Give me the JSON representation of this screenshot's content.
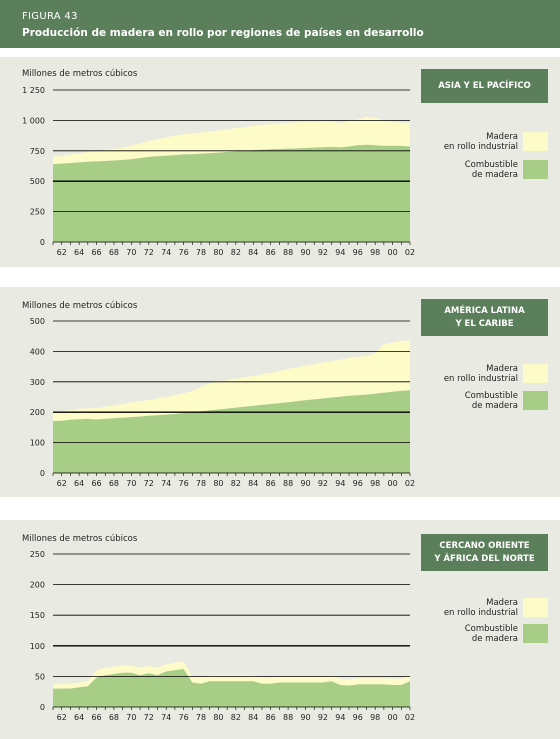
{
  "figure": {
    "label": "FIGURA 43",
    "title": "Producción de madera en rollo por regiones de países en desarrollo"
  },
  "colors": {
    "header": "#5b7f5a",
    "panel_bg": "#e9ebe2",
    "industrial": "#fdfbc7",
    "fuel": "#a8cd86"
  },
  "legend": {
    "industrial_label": "Madera\nen rollo industrial",
    "fuel_label": "Combustible\nde madera"
  },
  "chart_data": [
    {
      "type": "area",
      "region": "ASIA Y EL PACÍFICO",
      "ylabel": "Millones de metros cúbicos",
      "yticks": [
        "0",
        "250",
        "500",
        "750",
        "1 000",
        "1 250"
      ],
      "ylim": [
        0,
        1250
      ],
      "x": [
        1961,
        1962,
        1963,
        1964,
        1965,
        1966,
        1967,
        1968,
        1969,
        1970,
        1971,
        1972,
        1973,
        1974,
        1975,
        1976,
        1977,
        1978,
        1979,
        1980,
        1981,
        1982,
        1983,
        1984,
        1985,
        1986,
        1987,
        1988,
        1989,
        1990,
        1991,
        1992,
        1993,
        1994,
        1995,
        1996,
        1997,
        1998,
        1999,
        2000,
        2001,
        2002
      ],
      "xticks": [
        "62",
        "64",
        "66",
        "68",
        "70",
        "72",
        "74",
        "76",
        "78",
        "80",
        "82",
        "84",
        "86",
        "88",
        "90",
        "92",
        "94",
        "96",
        "98",
        "00",
        "02"
      ],
      "series": [
        {
          "name": "Combustible de madera",
          "values": [
            640,
            645,
            650,
            655,
            660,
            663,
            666,
            670,
            675,
            680,
            690,
            700,
            705,
            710,
            715,
            720,
            722,
            725,
            730,
            735,
            740,
            745,
            750,
            755,
            758,
            762,
            765,
            768,
            770,
            773,
            776,
            779,
            782,
            778,
            785,
            795,
            800,
            795,
            790,
            790,
            790,
            785
          ]
        },
        {
          "name": "Madera en rollo industrial",
          "values": [
            60,
            65,
            70,
            75,
            80,
            85,
            90,
            95,
            100,
            110,
            120,
            130,
            140,
            150,
            160,
            165,
            170,
            175,
            180,
            180,
            185,
            190,
            195,
            200,
            205,
            208,
            210,
            212,
            215,
            215,
            212,
            212,
            210,
            200,
            210,
            215,
            230,
            225,
            210,
            200,
            190,
            195
          ]
        }
      ]
    },
    {
      "type": "area",
      "region": "AMÉRICA LATINA\nY EL CARIBE",
      "ylabel": "Millones de metros cúbicos",
      "yticks": [
        "0",
        "100",
        "200",
        "300",
        "400",
        "500"
      ],
      "ylim": [
        0,
        500
      ],
      "x": [
        1961,
        1962,
        1963,
        1964,
        1965,
        1966,
        1967,
        1968,
        1969,
        1970,
        1971,
        1972,
        1973,
        1974,
        1975,
        1976,
        1977,
        1978,
        1979,
        1980,
        1981,
        1982,
        1983,
        1984,
        1985,
        1986,
        1987,
        1988,
        1989,
        1990,
        1991,
        1992,
        1993,
        1994,
        1995,
        1996,
        1997,
        1998,
        1999,
        2000,
        2001,
        2002
      ],
      "xticks": [
        "62",
        "64",
        "66",
        "68",
        "70",
        "72",
        "74",
        "76",
        "78",
        "80",
        "82",
        "84",
        "86",
        "88",
        "90",
        "92",
        "94",
        "96",
        "98",
        "00",
        "02"
      ],
      "series": [
        {
          "name": "Combustible de madera",
          "values": [
            170,
            172,
            175,
            177,
            178,
            176,
            178,
            180,
            182,
            184,
            186,
            188,
            190,
            192,
            194,
            197,
            200,
            203,
            206,
            209,
            212,
            215,
            218,
            221,
            224,
            227,
            230,
            233,
            236,
            239,
            242,
            245,
            248,
            251,
            254,
            256,
            258,
            261,
            264,
            267,
            270,
            272
          ]
        },
        {
          "name": "Madera en rollo industrial",
          "values": [
            28,
            30,
            32,
            34,
            35,
            37,
            40,
            42,
            45,
            48,
            50,
            52,
            55,
            58,
            62,
            65,
            70,
            80,
            90,
            92,
            93,
            95,
            97,
            99,
            101,
            103,
            106,
            109,
            112,
            114,
            116,
            118,
            120,
            122,
            124,
            126,
            128,
            131,
            160,
            162,
            164,
            165
          ]
        }
      ]
    },
    {
      "type": "area",
      "region": "CERCANO ORIENTE\nY ÁFRICA DEL NORTE",
      "ylabel": "Millones de metros cúbicos",
      "yticks": [
        "0",
        "50",
        "100",
        "150",
        "200",
        "250"
      ],
      "ylim": [
        0,
        250
      ],
      "x": [
        1961,
        1962,
        1963,
        1964,
        1965,
        1966,
        1967,
        1968,
        1969,
        1970,
        1971,
        1972,
        1973,
        1974,
        1975,
        1976,
        1977,
        1978,
        1979,
        1980,
        1981,
        1982,
        1983,
        1984,
        1985,
        1986,
        1987,
        1988,
        1989,
        1990,
        1991,
        1992,
        1993,
        1994,
        1995,
        1996,
        1997,
        1998,
        1999,
        2000,
        2001,
        2002
      ],
      "xticks": [
        "62",
        "64",
        "66",
        "68",
        "70",
        "72",
        "74",
        "76",
        "78",
        "80",
        "82",
        "84",
        "86",
        "88",
        "90",
        "92",
        "94",
        "96",
        "98",
        "00",
        "02"
      ],
      "series": [
        {
          "name": "Combustible de madera",
          "values": [
            30,
            30,
            30,
            32,
            34,
            48,
            52,
            54,
            56,
            56,
            52,
            55,
            52,
            58,
            60,
            62,
            40,
            38,
            42,
            42,
            42,
            42,
            42,
            42,
            38,
            38,
            40,
            40,
            40,
            40,
            40,
            40,
            42,
            36,
            35,
            37,
            37,
            37,
            37,
            36,
            36,
            42
          ]
        },
        {
          "name": "Madera en rollo industrial",
          "values": [
            8,
            8,
            8,
            8,
            8,
            12,
            12,
            12,
            12,
            12,
            12,
            12,
            12,
            12,
            12,
            12,
            10,
            10,
            10,
            10,
            10,
            10,
            10,
            10,
            10,
            10,
            10,
            10,
            10,
            10,
            10,
            10,
            10,
            10,
            10,
            10,
            10,
            10,
            10,
            10,
            10,
            10
          ]
        }
      ]
    }
  ]
}
